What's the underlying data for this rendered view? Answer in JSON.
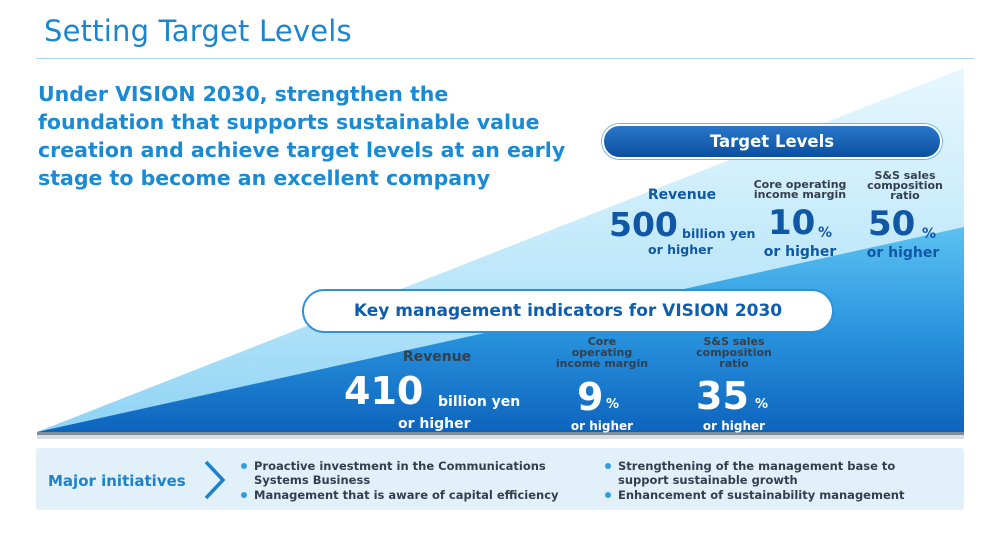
{
  "page": {
    "title": "Setting Target Levels",
    "headline": "Under VISION 2030, strengthen the foundation that supports sustainable value creation and achieve target levels at an early stage to become an excellent company"
  },
  "target_levels": {
    "heading": "Target Levels",
    "revenue": {
      "label": "Revenue",
      "value": "500",
      "unit": "billion yen",
      "qualifier": "or higher"
    },
    "core_margin": {
      "label_line1": "Core operating",
      "label_line2": "income margin",
      "value": "10",
      "unit": "%",
      "qualifier": "or higher"
    },
    "ss_ratio": {
      "label_line1": "S&S sales",
      "label_line2": "composition",
      "label_line3": "ratio",
      "value": "50",
      "unit": "%",
      "qualifier": "or higher"
    }
  },
  "kmi": {
    "heading": "Key management indicators for VISION 2030",
    "revenue": {
      "label": "Revenue",
      "value": "410",
      "unit": "billion yen",
      "qualifier": "or higher"
    },
    "core_margin": {
      "label_line1": "Core",
      "label_line2": "operating",
      "label_line3": "income margin",
      "value": "9",
      "unit": "%",
      "qualifier": "or higher"
    },
    "ss_ratio": {
      "label_line1": "S&S sales",
      "label_line2": "composition",
      "label_line3": "ratio",
      "value": "35",
      "unit": "%",
      "qualifier": "or higher"
    }
  },
  "initiatives": {
    "title": "Major initiatives",
    "left": [
      {
        "line1": "Proactive investment in the Communications",
        "line2": "Systems Business"
      },
      {
        "line1": "Management that is aware of capital efficiency",
        "line2": ""
      }
    ],
    "right": [
      {
        "line1": "Strengthening of the management base to",
        "line2": "support sustainable growth"
      },
      {
        "line1": "Enhancement of sustainability management",
        "line2": ""
      }
    ]
  },
  "colors": {
    "title_blue": "#1b86cf",
    "headline_blue": "#1a8ad4",
    "dark_navy": "#0b4fa0",
    "light_cyan": "#c8ecfb",
    "initiatives_bg": "#e2f0fa"
  },
  "icons": {
    "initiatives_arrow": "chevron-right-icon",
    "bullet": "bullet-dot-icon"
  }
}
